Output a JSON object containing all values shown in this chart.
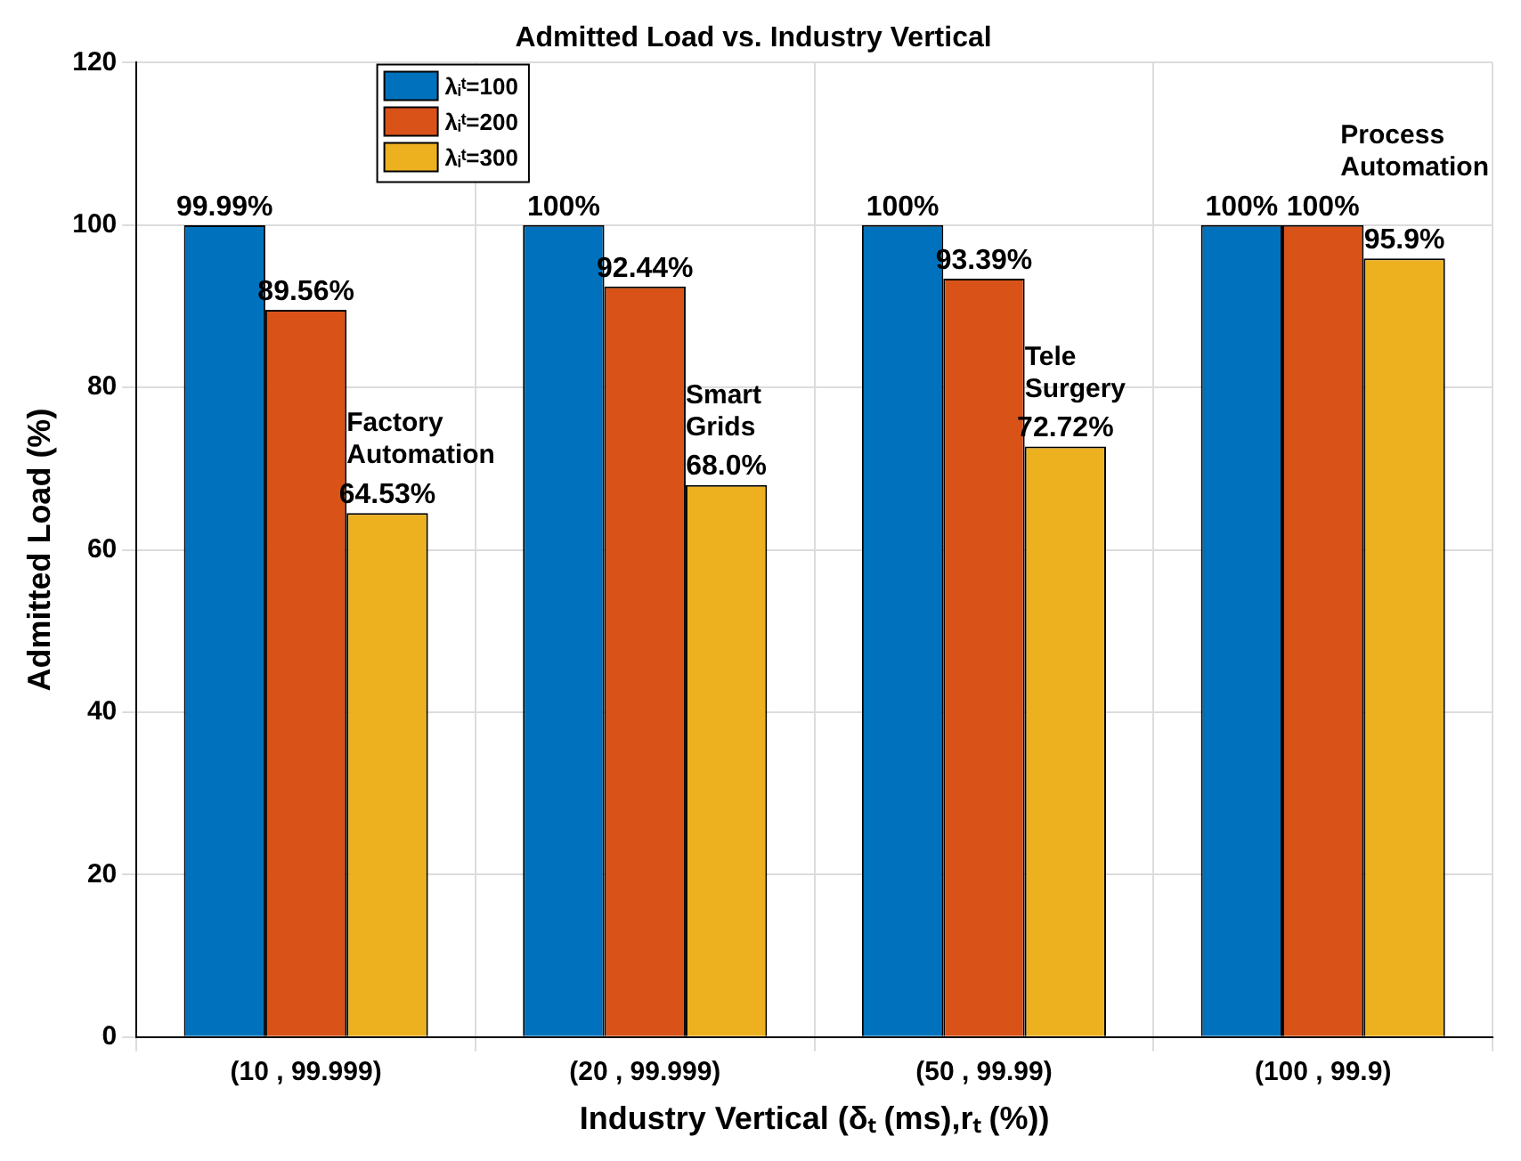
{
  "chart_data": {
    "type": "bar",
    "title": "Admitted Load vs. Industry Vertical",
    "xlabel": "Industry Vertical (δₜ (ms),rₜ (%))",
    "ylabel": "Admitted Load (%)",
    "categories": [
      "(10 , 99.999)",
      "(20 , 99.999)",
      "(50 , 99.99)",
      "(100 , 99.9)"
    ],
    "series": [
      {
        "name": "λᵢᵗ=100",
        "color": "#0072bd",
        "values": [
          99.99,
          100,
          100,
          100
        ],
        "value_labels": [
          "99.99%",
          "100%",
          "100%",
          "100%"
        ]
      },
      {
        "name": "λᵢᵗ=200",
        "color": "#d95319",
        "values": [
          89.56,
          92.44,
          93.39,
          100
        ],
        "value_labels": [
          "89.56%",
          "92.44%",
          "93.39%",
          "100%"
        ]
      },
      {
        "name": "λᵢᵗ=300",
        "color": "#edb120",
        "values": [
          64.53,
          68.0,
          72.72,
          95.9
        ],
        "value_labels": [
          "64.53%",
          "68.0%",
          "72.72%",
          "95.9%"
        ]
      }
    ],
    "annotations": [
      "Factory\nAutomation",
      "Smart\nGrids",
      "Tele\nSurgery",
      "Process\nAutomation"
    ],
    "ylim": [
      0,
      120
    ],
    "yticks": [
      0,
      20,
      40,
      60,
      80,
      100,
      120
    ],
    "grid": true,
    "legend": "top left"
  }
}
